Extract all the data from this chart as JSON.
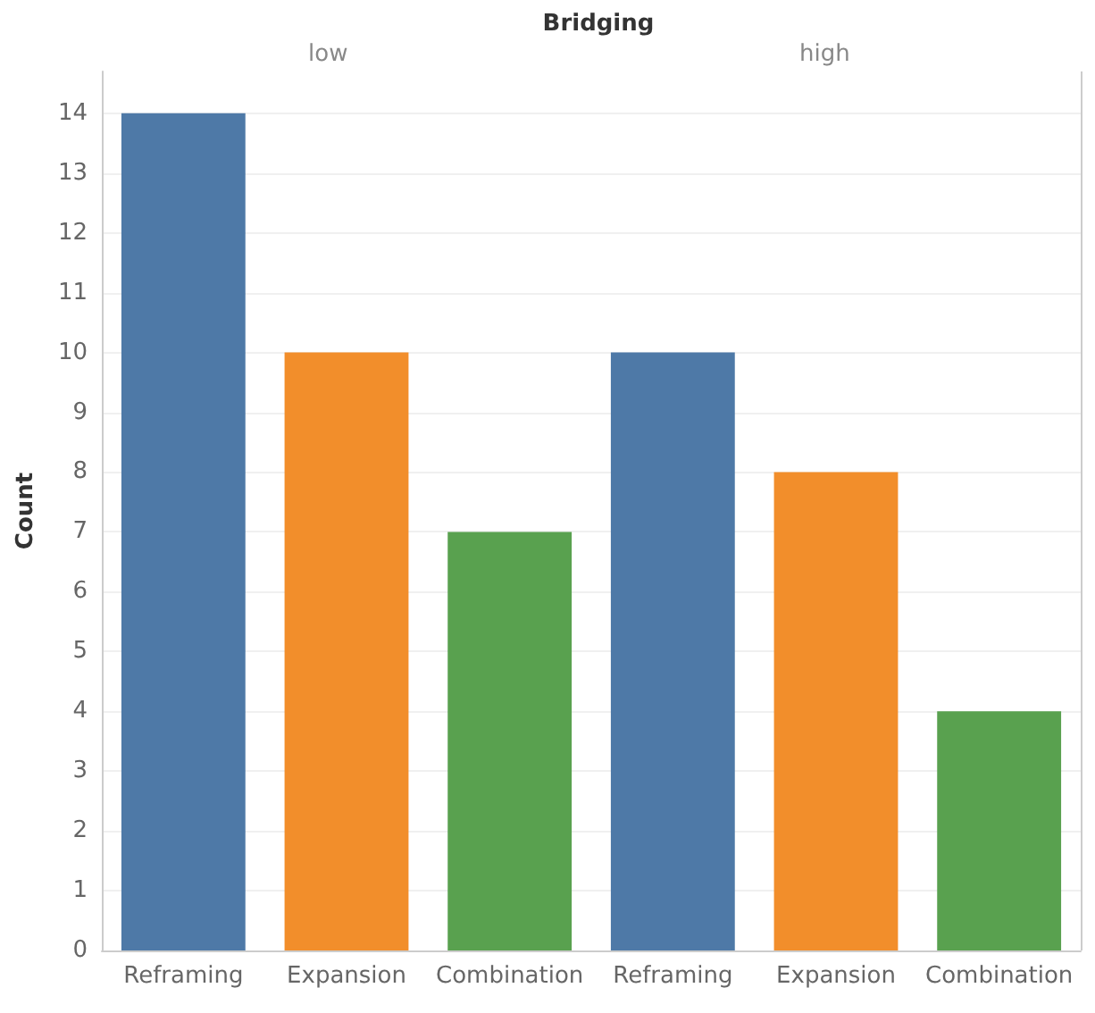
{
  "chart_data": {
    "type": "bar",
    "title": "Bridging",
    "annotations": [
      "low",
      "high"
    ],
    "ylabel": "Count",
    "categories": [
      "Reframing",
      "Expansion",
      "Combination",
      "Reframing",
      "Expansion",
      "Combination"
    ],
    "values": [
      14,
      10,
      7,
      10,
      8,
      4
    ],
    "colors": [
      "#4e79a7",
      "#f28e2b",
      "#59a14f",
      "#4e79a7",
      "#f28e2b",
      "#59a14f"
    ],
    "ylim": [
      0,
      14.7
    ],
    "yticks": [
      0,
      1,
      2,
      3,
      4,
      5,
      6,
      7,
      8,
      9,
      10,
      11,
      12,
      13,
      14
    ],
    "grid": "y"
  }
}
